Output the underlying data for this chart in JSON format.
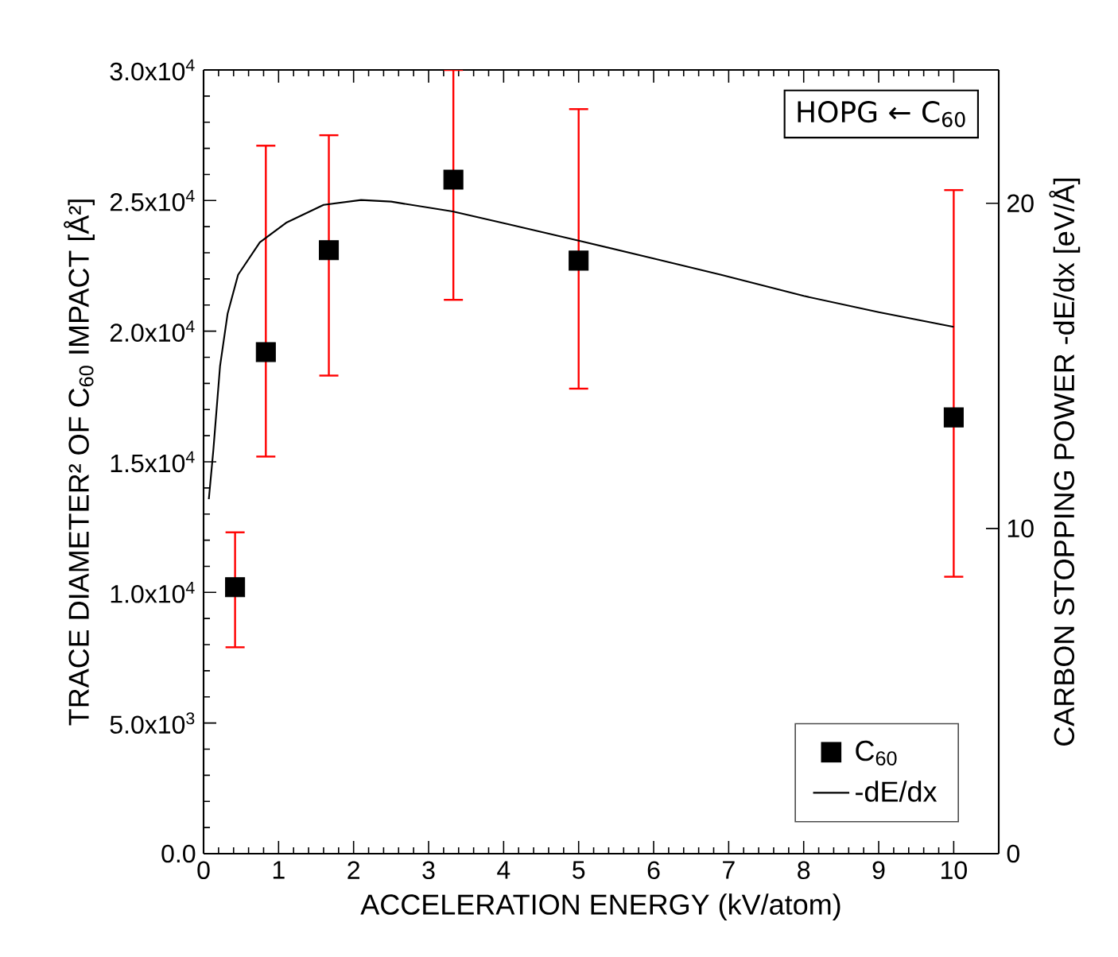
{
  "chart_data": {
    "type": "scatter",
    "xlabel": "ACCELERATION ENERGY (kV/atom)",
    "ylabel": "TRACE DIAMETER² OF C$_{60}$ IMPACT [Å²]",
    "y2label": "CARBON STOPPING POWER -dE/dx [eV/Å]",
    "xlim": [
      0,
      10.6
    ],
    "xticks": [
      0,
      1,
      2,
      3,
      4,
      5,
      6,
      7,
      8,
      9,
      10
    ],
    "ylim": [
      0,
      30000
    ],
    "yticks": [
      {
        "value": 0,
        "label": "0.0"
      },
      {
        "value": 5000,
        "label": "5.0x10$^{3}$"
      },
      {
        "value": 10000,
        "label": "1.0x10$^{4}$"
      },
      {
        "value": 15000,
        "label": "1.5x10$^{4}$"
      },
      {
        "value": 20000,
        "label": "2.0x10$^{4}$"
      },
      {
        "value": 25000,
        "label": "2.5x10$^{4}$"
      },
      {
        "value": 30000,
        "label": "3.0x10$^{4}$"
      }
    ],
    "y2lim": [
      0,
      24.1
    ],
    "y2ticks": [
      0,
      10,
      20
    ],
    "legend": "bottom right",
    "annotations": [
      "HOPG ← C$_{60}$"
    ],
    "series": [
      {
        "name": "C$_{60}$",
        "marker": "square",
        "color": "#000000",
        "x": [
          0.42,
          0.83,
          1.67,
          3.33,
          5,
          10
        ],
        "values": [
          10200,
          19200,
          23100,
          25800,
          22700,
          16700
        ],
        "errors": [
          [
            7900,
            12300
          ],
          [
            15200,
            27100
          ],
          [
            18300,
            27500
          ],
          [
            21200,
            30000
          ],
          [
            17800,
            28500
          ],
          [
            10600,
            25400
          ]
        ]
      },
      {
        "name": "-dE/dx",
        "type": "line",
        "axis": "y2",
        "color": "#000000",
        "x": [
          0.07,
          0.13,
          0.22,
          0.32,
          0.46,
          0.75,
          1.1,
          1.6,
          2.1,
          2.5,
          3.32,
          4.07,
          5,
          6,
          6.9,
          8,
          9,
          10
        ],
        "values": [
          10.9,
          12.4,
          15.0,
          16.6,
          17.8,
          18.8,
          19.4,
          19.95,
          20.1,
          20.05,
          19.75,
          19.35,
          18.85,
          18.3,
          17.8,
          17.15,
          16.65,
          16.2
        ]
      }
    ]
  }
}
